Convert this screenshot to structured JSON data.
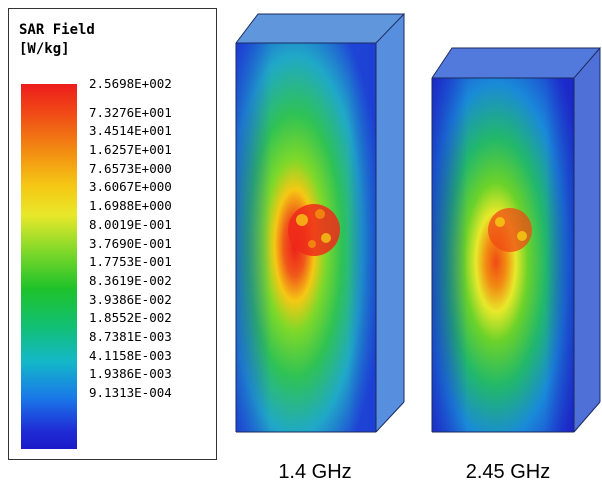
{
  "legend": {
    "title_line1": "SAR Field",
    "title_line2": "[W/kg]",
    "values": [
      "2.5698E+002",
      "7.3276E+001",
      "3.4514E+001",
      "1.6257E+001",
      "7.6573E+000",
      "3.6067E+000",
      "1.6988E+000",
      "8.0019E-001",
      "3.7690E-001",
      "1.7753E-001",
      "8.3619E-002",
      "3.9386E-002",
      "1.8552E-002",
      "8.7381E-003",
      "4.1158E-003",
      "1.9386E-003",
      "9.1313E-004"
    ]
  },
  "views": [
    {
      "label": "1.4 GHz"
    },
    {
      "label": "2.45 GHz"
    }
  ],
  "colors": {
    "max": "#ee1c1c",
    "high": "#f5c814",
    "mid": "#1fc22a",
    "low": "#13b8c8",
    "min": "#1a1ac8"
  }
}
